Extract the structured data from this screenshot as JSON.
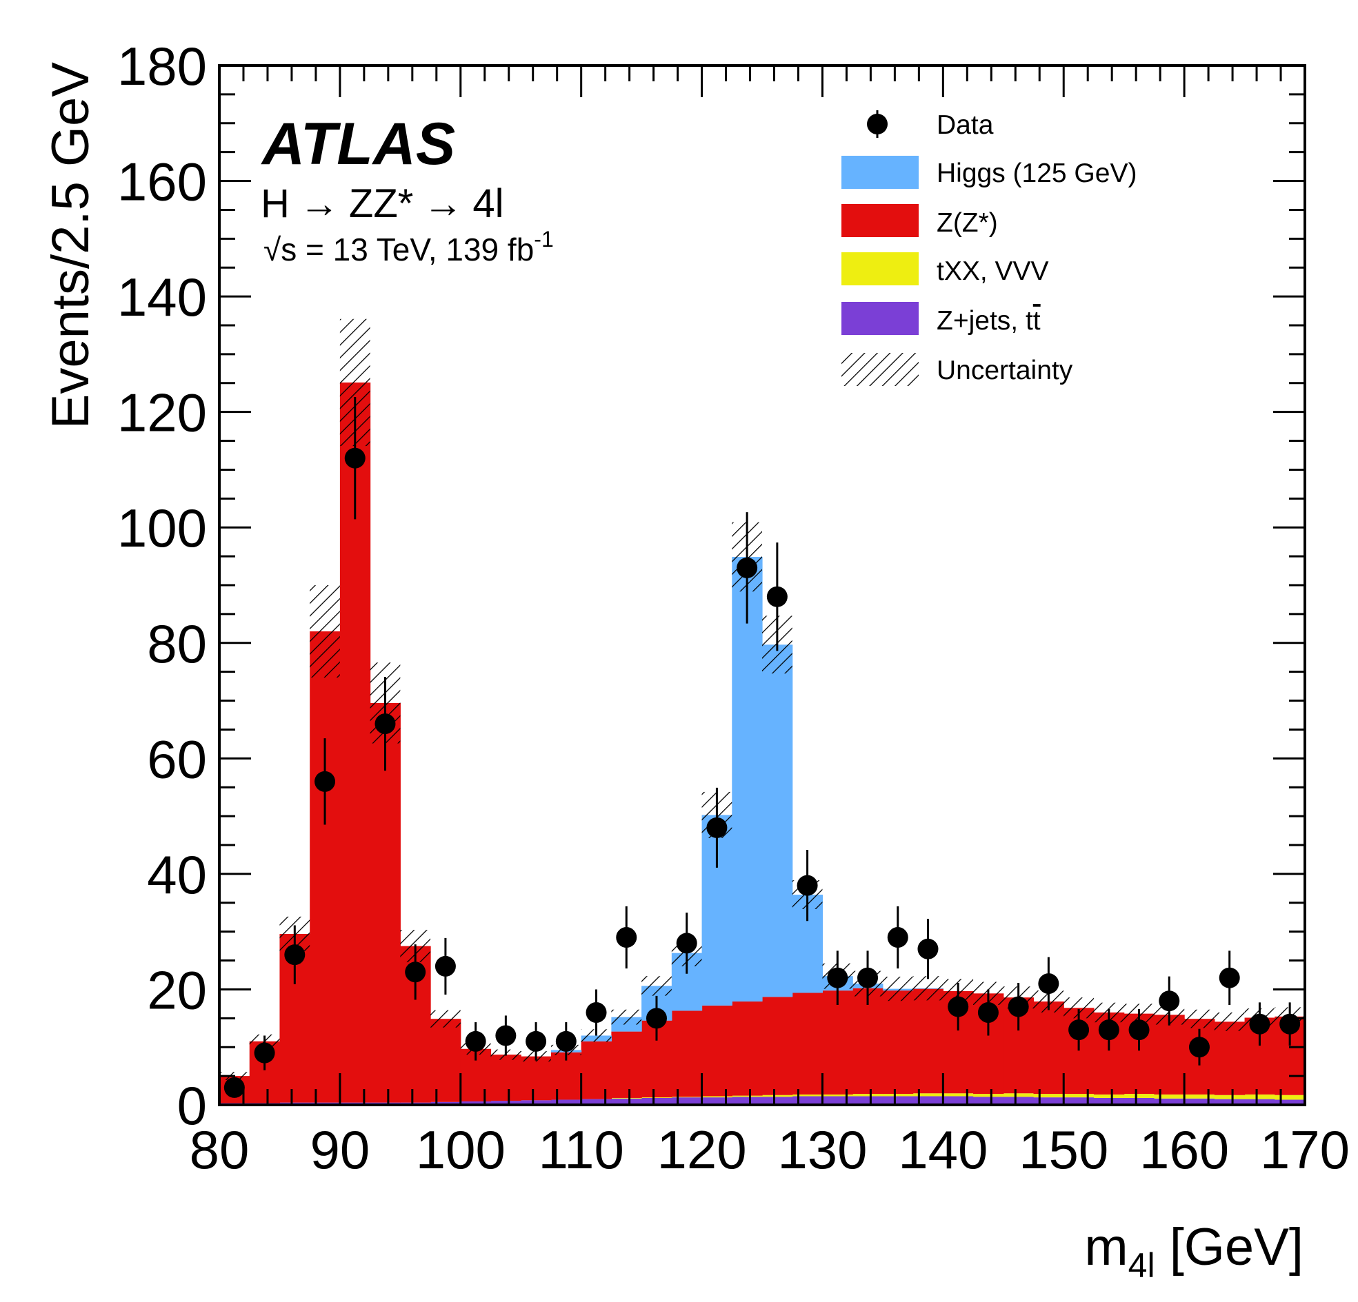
{
  "chart_data": {
    "type": "bar",
    "subtype": "stacked-histogram",
    "bin_width": 2.5,
    "bin_edges_start": 80,
    "xlim": [
      80,
      170
    ],
    "ylim": [
      0,
      180
    ],
    "xlabel_main": "m",
    "xlabel_sub": "4l",
    "xlabel_unit": " [GeV]",
    "ylabel": "Events/2.5 GeV",
    "x_ticks": [
      80,
      90,
      100,
      110,
      120,
      130,
      140,
      150,
      160,
      170
    ],
    "y_ticks": [
      0,
      20,
      40,
      60,
      80,
      100,
      120,
      140,
      160,
      180
    ],
    "annotations": {
      "experiment": "ATLAS",
      "process_h": "H",
      "process_zz": "ZZ*",
      "process_4l": "4l",
      "arrow": "→",
      "sqrt": "√s",
      "energy": " = 13 TeV, 139 fb",
      "lumi_exp": "-1"
    },
    "series": [
      {
        "name": "Z+jets, tt̄",
        "legend": "Z+jets, t",
        "legend_bar": "t",
        "color": "#7b3fd6",
        "values": [
          0.3,
          0.3,
          0.4,
          0.4,
          0.4,
          0.4,
          0.4,
          0.5,
          0.6,
          0.7,
          0.8,
          0.9,
          1.0,
          1.1,
          1.2,
          1.3,
          1.3,
          1.4,
          1.4,
          1.5,
          1.5,
          1.5,
          1.5,
          1.5,
          1.5,
          1.4,
          1.4,
          1.3,
          1.3,
          1.2,
          1.2,
          1.1,
          1.1,
          1.0,
          1.0,
          0.9
        ]
      },
      {
        "name": "tXX, VVV",
        "legend": "tXX, VVV",
        "color": "#eeee11",
        "values": [
          0,
          0,
          0,
          0,
          0,
          0,
          0,
          0,
          0,
          0,
          0,
          0,
          0,
          0.1,
          0.1,
          0.1,
          0.2,
          0.2,
          0.3,
          0.3,
          0.3,
          0.4,
          0.4,
          0.5,
          0.5,
          0.5,
          0.6,
          0.6,
          0.6,
          0.6,
          0.7,
          0.7,
          0.7,
          0.7,
          0.8,
          0.8
        ]
      },
      {
        "name": "Z(Z*)",
        "legend": "Z(Z*)",
        "color": "#e30e0e",
        "values": [
          4.7,
          10.7,
          29.2,
          81.6,
          124.7,
          69.2,
          27.1,
          14.4,
          9.1,
          8.0,
          7.6,
          8.2,
          10.0,
          11.5,
          13.3,
          14.9,
          15.7,
          16.3,
          17.0,
          17.6,
          18.0,
          18.3,
          17.9,
          18.1,
          17.7,
          17.4,
          16.6,
          16.0,
          14.9,
          14.2,
          13.9,
          13.8,
          13.1,
          12.7,
          13.3,
          13.6
        ]
      },
      {
        "name": "Higgs (125 GeV)",
        "legend": "Higgs (125 GeV)",
        "color": "#66b3ff",
        "values": [
          0,
          0,
          0,
          0,
          0,
          0,
          0,
          0,
          0,
          0,
          0,
          0.4,
          1.0,
          2.5,
          6.0,
          10.0,
          33.0,
          77.0,
          61.0,
          17.0,
          2.5,
          0.8,
          0.3,
          0.1,
          0,
          0,
          0,
          0,
          0,
          0,
          0,
          0,
          0,
          0,
          0,
          0
        ]
      }
    ],
    "uncertainty": {
      "name": "Uncertainty",
      "legend": "Uncertainty",
      "values": [
        0.7,
        1.2,
        3.0,
        8.0,
        11.0,
        7.0,
        2.8,
        1.5,
        1.0,
        0.9,
        0.9,
        0.9,
        1.1,
        1.3,
        1.7,
        2.3,
        4.0,
        6.0,
        5.0,
        2.5,
        2.2,
        2.2,
        2.1,
        2.1,
        2.1,
        2.0,
        1.9,
        1.9,
        1.8,
        1.7,
        1.7,
        1.7,
        1.6,
        1.6,
        1.6,
        1.6
      ]
    },
    "data_points": {
      "name": "Data",
      "legend": "Data",
      "y": [
        3,
        9,
        26,
        56,
        112,
        66,
        23,
        24,
        11,
        12,
        11,
        11,
        16,
        29,
        15,
        28,
        48,
        93,
        88,
        38,
        22,
        22,
        29,
        27,
        17,
        16,
        17,
        21,
        13,
        13,
        13,
        18,
        10,
        22,
        14,
        14
      ]
    }
  }
}
